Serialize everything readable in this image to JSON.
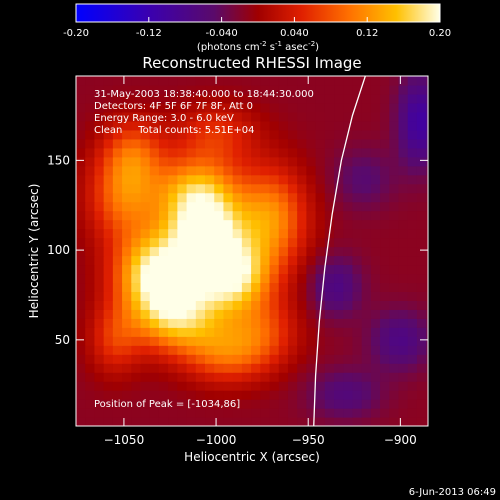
{
  "colorbar": {
    "ticks": [
      "-0.20",
      "-0.12",
      "-0.040",
      "0.040",
      "0.12",
      "0.20"
    ],
    "units_main": "(photons cm",
    "units_sup1": "-2",
    "units_mid1": " s",
    "units_sup2": "-1",
    "units_mid2": " asec",
    "units_sup3": "-2",
    "units_end": ")",
    "range": [
      -0.2,
      0.2
    ]
  },
  "chart_data": {
    "type": "heatmap",
    "title": "Reconstructed RHESSI Image",
    "xlabel": "Heliocentric X (arcsec)",
    "ylabel": "Heliocentric Y (arcsec)",
    "xlim": [
      -1076,
      -885
    ],
    "ylim": [
      2,
      197
    ],
    "x_ticks": [
      -1050,
      -1000,
      -950,
      -900
    ],
    "x_tick_labels": [
      "−1050",
      "−1000",
      "−950",
      "−900"
    ],
    "y_ticks": [
      50,
      100,
      150
    ],
    "y_tick_labels": [
      "50",
      "100",
      "150"
    ],
    "info_lines": [
      "31-May-2003 18:38:40.000 to 18:44:30.000",
      "Detectors: 4F 5F 6F 7F 8F, Att 0",
      "Energy Range: 3.0 - 6.0 keV",
      "Clean     Total counts: 5.51E+04"
    ],
    "peak_label": "Position of Peak = [-1034,86]",
    "peak_position": [
      -1034,
      86
    ],
    "limb": [
      [
        -947,
        2
      ],
      [
        -946,
        30
      ],
      [
        -944,
        60
      ],
      [
        -941,
        90
      ],
      [
        -937,
        120
      ],
      [
        -932,
        150
      ],
      [
        -926,
        175
      ],
      [
        -919,
        197
      ]
    ],
    "sources": [
      {
        "x": -1032,
        "y": 87,
        "amp": 0.205,
        "sx": 16,
        "sy": 16
      },
      {
        "x": -992,
        "y": 86,
        "amp": 0.19,
        "sx": 15,
        "sy": 14
      },
      {
        "x": -1006,
        "y": 110,
        "amp": 0.18,
        "sx": 15,
        "sy": 14
      },
      {
        "x": -1010,
        "y": 133,
        "amp": 0.15,
        "sx": 16,
        "sy": 14
      },
      {
        "x": -1020,
        "y": 62,
        "amp": 0.15,
        "sx": 18,
        "sy": 14
      },
      {
        "x": -970,
        "y": 118,
        "amp": 0.13,
        "sx": 14,
        "sy": 20
      },
      {
        "x": -1050,
        "y": 130,
        "amp": 0.11,
        "sx": 14,
        "sy": 18
      },
      {
        "x": -1045,
        "y": 155,
        "amp": 0.08,
        "sx": 12,
        "sy": 14
      },
      {
        "x": -995,
        "y": 42,
        "amp": 0.09,
        "sx": 16,
        "sy": 12
      },
      {
        "x": -975,
        "y": 55,
        "amp": 0.08,
        "sx": 14,
        "sy": 14
      },
      {
        "x": -1055,
        "y": 50,
        "amp": 0.07,
        "sx": 10,
        "sy": 14
      },
      {
        "x": -1000,
        "y": 165,
        "amp": 0.07,
        "sx": 16,
        "sy": 12
      }
    ],
    "background_value": -0.015,
    "deep_patches": [
      {
        "x": -890,
        "y": 172,
        "amp": -0.09,
        "sx": 8,
        "sy": 18
      },
      {
        "x": -935,
        "y": 80,
        "amp": -0.06,
        "sx": 10,
        "sy": 12
      },
      {
        "x": -900,
        "y": 50,
        "amp": -0.06,
        "sx": 12,
        "sy": 12
      },
      {
        "x": -920,
        "y": 140,
        "amp": -0.04,
        "sx": 12,
        "sy": 12
      },
      {
        "x": -930,
        "y": 20,
        "amp": -0.05,
        "sx": 14,
        "sy": 10
      }
    ]
  },
  "footer": {
    "timestamp": "6-Jun-2013 06:49"
  }
}
